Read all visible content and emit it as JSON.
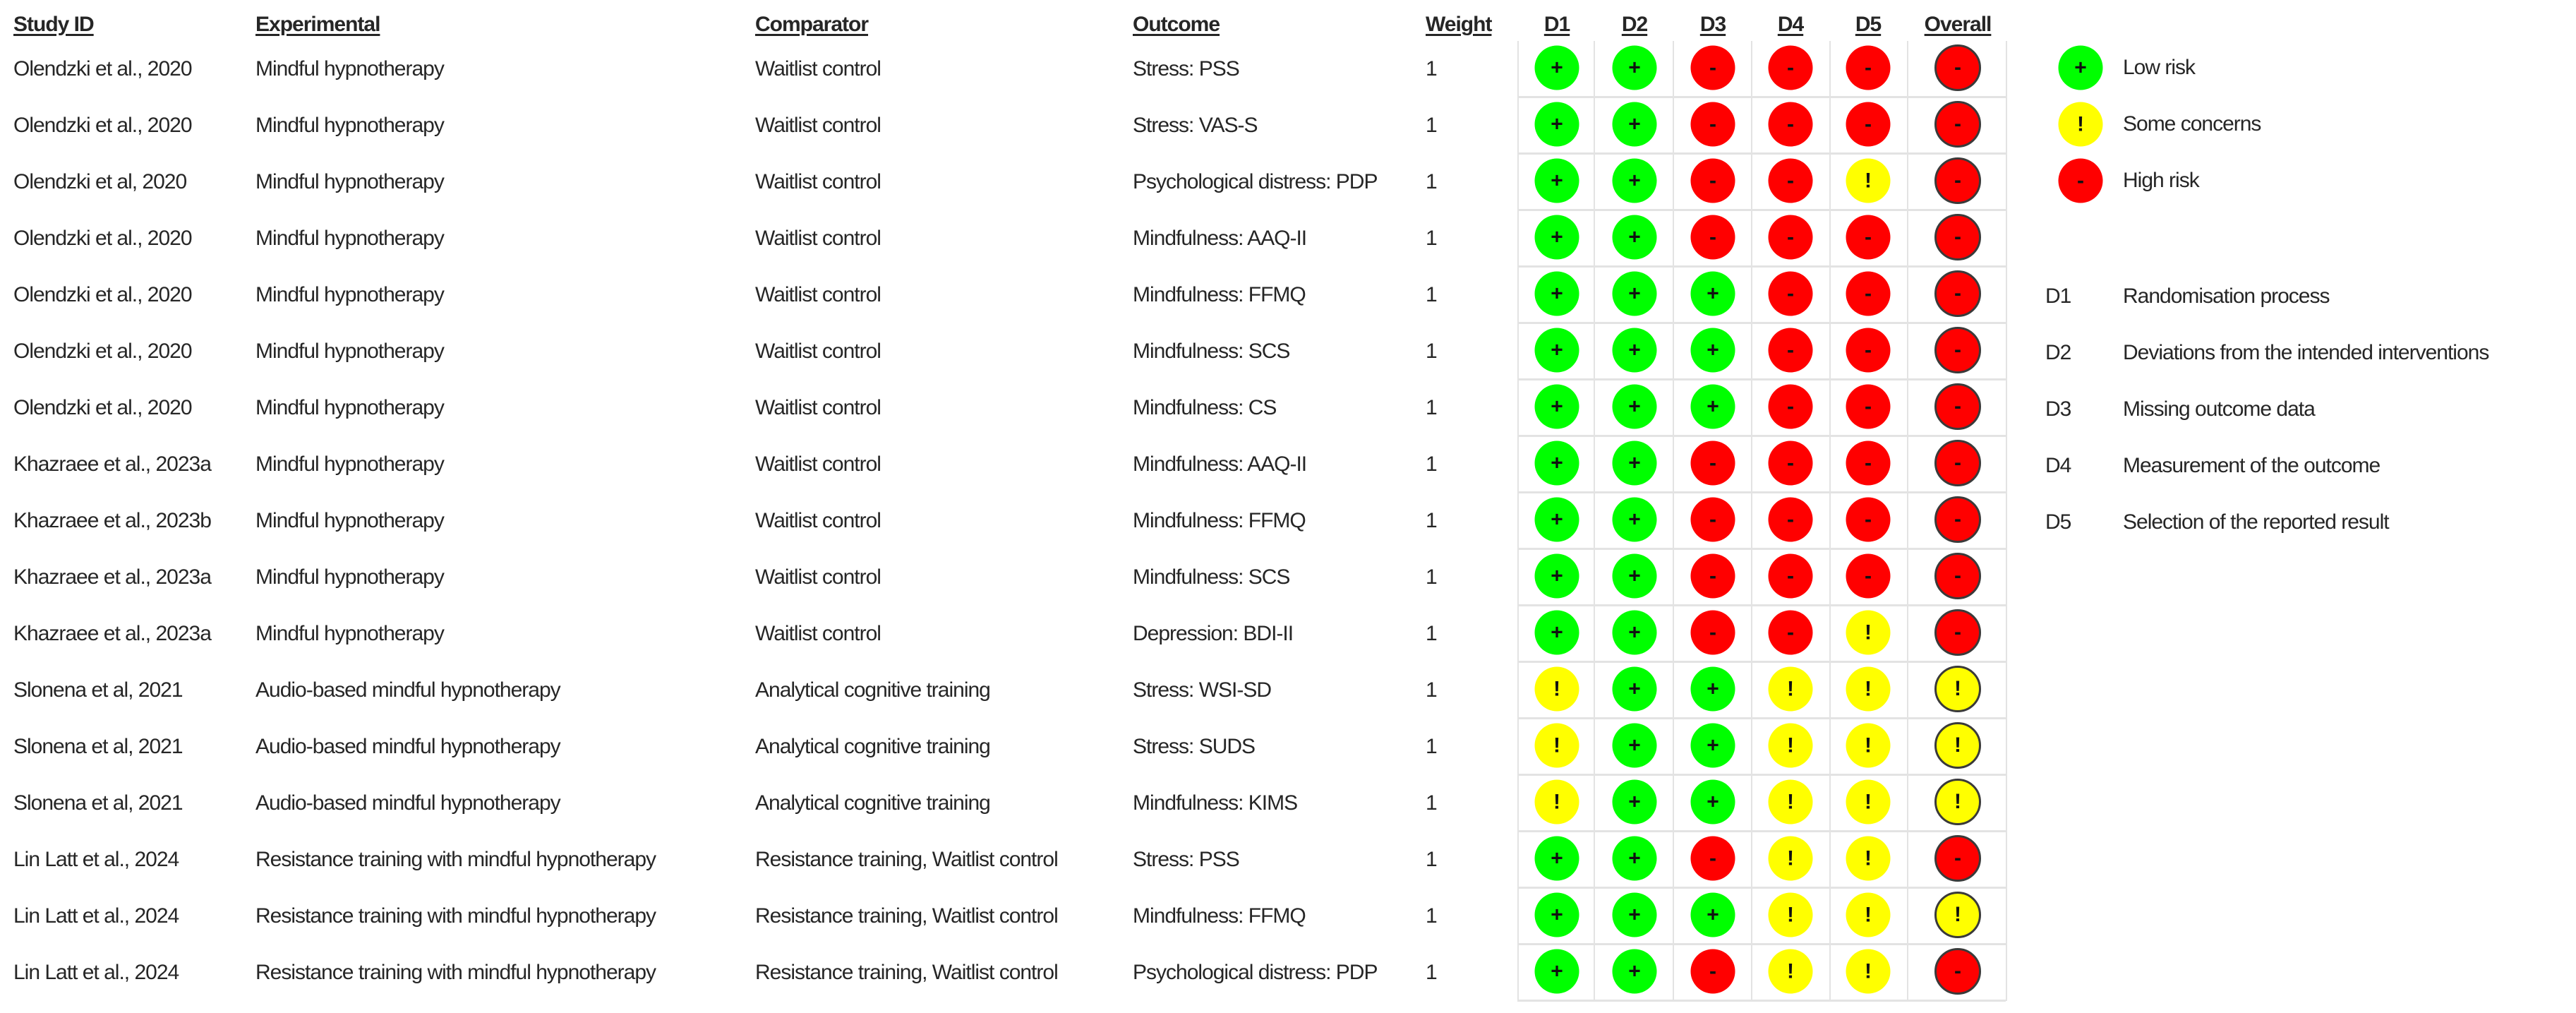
{
  "table": {
    "headers": {
      "study_id": "Study ID",
      "experimental": "Experimental",
      "comparator": "Comparator",
      "outcome": "Outcome",
      "weight": "Weight",
      "d1": "D1",
      "d2": "D2",
      "d3": "D3",
      "d4": "D4",
      "d5": "D5",
      "overall": "Overall"
    },
    "rows": [
      {
        "study_id": "Olendzki et al., 2020",
        "experimental": "Mindful hypnotherapy",
        "comparator": "Waitlist control",
        "outcome": "Stress: PSS",
        "weight": "1",
        "d1": "low",
        "d2": "low",
        "d3": "high",
        "d4": "high",
        "d5": "high",
        "overall": "high"
      },
      {
        "study_id": "Olendzki et al., 2020",
        "experimental": "Mindful hypnotherapy",
        "comparator": "Waitlist control",
        "outcome": "Stress: VAS-S",
        "weight": "1",
        "d1": "low",
        "d2": "low",
        "d3": "high",
        "d4": "high",
        "d5": "high",
        "overall": "high"
      },
      {
        "study_id": "Olendzki et al, 2020",
        "experimental": "Mindful hypnotherapy",
        "comparator": "Waitlist control",
        "outcome": "Psychological distress: PDP",
        "weight": "1",
        "d1": "low",
        "d2": "low",
        "d3": "high",
        "d4": "high",
        "d5": "some",
        "overall": "high"
      },
      {
        "study_id": "Olendzki et al., 2020",
        "experimental": "Mindful hypnotherapy",
        "comparator": "Waitlist control",
        "outcome": "Mindfulness: AAQ-II",
        "weight": "1",
        "d1": "low",
        "d2": "low",
        "d3": "high",
        "d4": "high",
        "d5": "high",
        "overall": "high"
      },
      {
        "study_id": "Olendzki et al., 2020",
        "experimental": "Mindful hypnotherapy",
        "comparator": "Waitlist control",
        "outcome": "Mindfulness: FFMQ",
        "weight": "1",
        "d1": "low",
        "d2": "low",
        "d3": "low",
        "d4": "high",
        "d5": "high",
        "overall": "high"
      },
      {
        "study_id": "Olendzki et al., 2020",
        "experimental": "Mindful hypnotherapy",
        "comparator": "Waitlist control",
        "outcome": "Mindfulness: SCS",
        "weight": "1",
        "d1": "low",
        "d2": "low",
        "d3": "low",
        "d4": "high",
        "d5": "high",
        "overall": "high"
      },
      {
        "study_id": "Olendzki et al., 2020",
        "experimental": "Mindful hypnotherapy",
        "comparator": "Waitlist control",
        "outcome": "Mindfulness: CS",
        "weight": "1",
        "d1": "low",
        "d2": "low",
        "d3": "low",
        "d4": "high",
        "d5": "high",
        "overall": "high"
      },
      {
        "study_id": "Khazraee et al., 2023a",
        "experimental": "Mindful hypnotherapy",
        "comparator": "Waitlist control",
        "outcome": "Mindfulness: AAQ-II",
        "weight": "1",
        "d1": "low",
        "d2": "low",
        "d3": "high",
        "d4": "high",
        "d5": "high",
        "overall": "high"
      },
      {
        "study_id": "Khazraee et al., 2023b",
        "experimental": "Mindful hypnotherapy",
        "comparator": "Waitlist control",
        "outcome": "Mindfulness: FFMQ",
        "weight": "1",
        "d1": "low",
        "d2": "low",
        "d3": "high",
        "d4": "high",
        "d5": "high",
        "overall": "high"
      },
      {
        "study_id": "Khazraee et al., 2023a",
        "experimental": "Mindful hypnotherapy",
        "comparator": "Waitlist control",
        "outcome": "Mindfulness: SCS",
        "weight": "1",
        "d1": "low",
        "d2": "low",
        "d3": "high",
        "d4": "high",
        "d5": "high",
        "overall": "high"
      },
      {
        "study_id": "Khazraee et al., 2023a",
        "experimental": "Mindful hypnotherapy",
        "comparator": "Waitlist control",
        "outcome": "Depression: BDI-II",
        "weight": "1",
        "d1": "low",
        "d2": "low",
        "d3": "high",
        "d4": "high",
        "d5": "some",
        "overall": "high"
      },
      {
        "study_id": "Slonena et al, 2021",
        "experimental": "Audio-based mindful hypnotherapy",
        "comparator": "Analytical cognitive training",
        "outcome": "Stress: WSI-SD",
        "weight": "1",
        "d1": "some",
        "d2": "low",
        "d3": "low",
        "d4": "some",
        "d5": "some",
        "overall": "some"
      },
      {
        "study_id": "Slonena et al, 2021",
        "experimental": "Audio-based mindful hypnotherapy",
        "comparator": "Analytical cognitive training",
        "outcome": "Stress: SUDS",
        "weight": "1",
        "d1": "some",
        "d2": "low",
        "d3": "low",
        "d4": "some",
        "d5": "some",
        "overall": "some"
      },
      {
        "study_id": "Slonena et al, 2021",
        "experimental": "Audio-based mindful hypnotherapy",
        "comparator": "Analytical cognitive training",
        "outcome": "Mindfulness: KIMS",
        "weight": "1",
        "d1": "some",
        "d2": "low",
        "d3": "low",
        "d4": "some",
        "d5": "some",
        "overall": "some"
      },
      {
        "study_id": "Lin Latt et al., 2024",
        "experimental": "Resistance training with mindful hypnotherapy",
        "comparator": "Resistance training, Waitlist control",
        "outcome": "Stress: PSS",
        "weight": "1",
        "d1": "low",
        "d2": "low",
        "d3": "high",
        "d4": "some",
        "d5": "some",
        "overall": "high"
      },
      {
        "study_id": "Lin Latt et al., 2024",
        "experimental": "Resistance training with mindful hypnotherapy",
        "comparator": "Resistance training, Waitlist control",
        "outcome": "Mindfulness: FFMQ",
        "weight": "1",
        "d1": "low",
        "d2": "low",
        "d3": "low",
        "d4": "some",
        "d5": "some",
        "overall": "some"
      },
      {
        "study_id": "Lin Latt et al., 2024",
        "experimental": "Resistance training with mindful hypnotherapy",
        "comparator": "Resistance training, Waitlist control",
        "outcome": "Psychological distress: PDP",
        "weight": "1",
        "d1": "low",
        "d2": "low",
        "d3": "high",
        "d4": "some",
        "d5": "some",
        "overall": "high"
      }
    ]
  },
  "risk_levels": {
    "low": {
      "symbol": "+",
      "label": "Low risk",
      "color": "#00ff00"
    },
    "some": {
      "symbol": "!",
      "label": "Some concerns",
      "color": "#ffff00"
    },
    "high": {
      "symbol": "-",
      "label": "High risk",
      "color": "#ff0000"
    }
  },
  "legend": {
    "judgements": [
      {
        "key": "low",
        "symbol": "+",
        "label": "Low risk"
      },
      {
        "key": "some",
        "symbol": "!",
        "label": "Some concerns"
      },
      {
        "key": "high",
        "symbol": "-",
        "label": "High risk"
      }
    ],
    "domains": [
      {
        "code": "D1",
        "label": "Randomisation process"
      },
      {
        "code": "D2",
        "label": "Deviations from the intended interventions"
      },
      {
        "code": "D3",
        "label": "Missing outcome data"
      },
      {
        "code": "D4",
        "label": "Measurement of the outcome"
      },
      {
        "code": "D5",
        "label": "Selection of the reported result"
      }
    ]
  },
  "chart_data": {
    "type": "table",
    "title": "",
    "columns": [
      "Study ID",
      "Experimental",
      "Comparator",
      "Outcome",
      "Weight",
      "D1",
      "D2",
      "D3",
      "D4",
      "D5",
      "Overall"
    ],
    "rows": [
      [
        "Olendzki et al., 2020",
        "Mindful hypnotherapy",
        "Waitlist control",
        "Stress: PSS",
        1,
        "+",
        "+",
        "-",
        "-",
        "-",
        "-"
      ],
      [
        "Olendzki et al., 2020",
        "Mindful hypnotherapy",
        "Waitlist control",
        "Stress: VAS-S",
        1,
        "+",
        "+",
        "-",
        "-",
        "-",
        "-"
      ],
      [
        "Olendzki et al, 2020",
        "Mindful hypnotherapy",
        "Waitlist control",
        "Psychological distress: PDP",
        1,
        "+",
        "+",
        "-",
        "-",
        "!",
        "-"
      ],
      [
        "Olendzki et al., 2020",
        "Mindful hypnotherapy",
        "Waitlist control",
        "Mindfulness: AAQ-II",
        1,
        "+",
        "+",
        "-",
        "-",
        "-",
        "-"
      ],
      [
        "Olendzki et al., 2020",
        "Mindful hypnotherapy",
        "Waitlist control",
        "Mindfulness: FFMQ",
        1,
        "+",
        "+",
        "+",
        "-",
        "-",
        "-"
      ],
      [
        "Olendzki et al., 2020",
        "Mindful hypnotherapy",
        "Waitlist control",
        "Mindfulness: SCS",
        1,
        "+",
        "+",
        "+",
        "-",
        "-",
        "-"
      ],
      [
        "Olendzki et al., 2020",
        "Mindful hypnotherapy",
        "Waitlist control",
        "Mindfulness: CS",
        1,
        "+",
        "+",
        "+",
        "-",
        "-",
        "-"
      ],
      [
        "Khazraee et al., 2023a",
        "Mindful hypnotherapy",
        "Waitlist control",
        "Mindfulness: AAQ-II",
        1,
        "+",
        "+",
        "-",
        "-",
        "-",
        "-"
      ],
      [
        "Khazraee et al., 2023b",
        "Mindful hypnotherapy",
        "Waitlist control",
        "Mindfulness: FFMQ",
        1,
        "+",
        "+",
        "-",
        "-",
        "-",
        "-"
      ],
      [
        "Khazraee et al., 2023a",
        "Mindful hypnotherapy",
        "Waitlist control",
        "Mindfulness: SCS",
        1,
        "+",
        "+",
        "-",
        "-",
        "-",
        "-"
      ],
      [
        "Khazraee et al., 2023a",
        "Mindful hypnotherapy",
        "Waitlist control",
        "Depression: BDI-II",
        1,
        "+",
        "+",
        "-",
        "-",
        "!",
        "-"
      ],
      [
        "Slonena et al, 2021",
        "Audio-based mindful hypnotherapy",
        "Analytical cognitive training",
        "Stress: WSI-SD",
        1,
        "!",
        "+",
        "+",
        "!",
        "!",
        "!"
      ],
      [
        "Slonena et al, 2021",
        "Audio-based mindful hypnotherapy",
        "Analytical cognitive training",
        "Stress: SUDS",
        1,
        "!",
        "+",
        "+",
        "!",
        "!",
        "!"
      ],
      [
        "Slonena et al, 2021",
        "Audio-based mindful hypnotherapy",
        "Analytical cognitive training",
        "Mindfulness: KIMS",
        1,
        "!",
        "+",
        "+",
        "!",
        "!",
        "!"
      ],
      [
        "Lin Latt et al., 2024",
        "Resistance training with mindful hypnotherapy",
        "Resistance training, Waitlist control",
        "Stress: PSS",
        1,
        "+",
        "+",
        "-",
        "!",
        "!",
        "-"
      ],
      [
        "Lin Latt et al., 2024",
        "Resistance training with mindful hypnotherapy",
        "Resistance training, Waitlist control",
        "Mindfulness: FFMQ",
        1,
        "+",
        "+",
        "+",
        "!",
        "!",
        "!"
      ],
      [
        "Lin Latt et al., 2024",
        "Resistance training with mindful hypnotherapy",
        "Resistance training, Waitlist control",
        "Psychological distress: PDP",
        1,
        "+",
        "+",
        "-",
        "!",
        "!",
        "-"
      ]
    ],
    "legend": {
      "+": "Low risk",
      "!": "Some concerns",
      "-": "High risk",
      "D1": "Randomisation process",
      "D2": "Deviations from the intended interventions",
      "D3": "Missing outcome data",
      "D4": "Measurement of the outcome",
      "D5": "Selection of the reported result"
    },
    "legend_position": "right"
  }
}
